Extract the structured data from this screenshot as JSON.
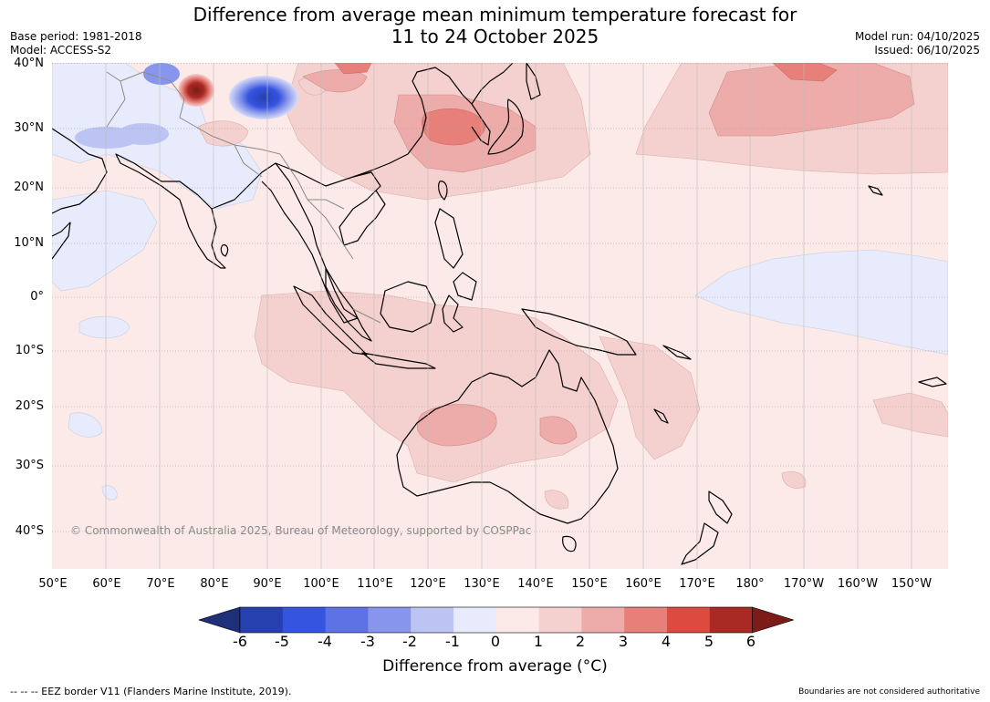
{
  "title": {
    "line1": "Difference from average mean minimum temperature forecast for",
    "line2": "11 to 24 October 2025"
  },
  "meta": {
    "base_period": "Base period: 1981-2018",
    "model": "Model: ACCESS-S2",
    "model_run": "Model run: 04/10/2025",
    "issued": "Issued: 06/10/2025"
  },
  "map": {
    "copyright": "© Commonwealth of Australia 2025, Bureau of Meteorology, supported by COSPPac",
    "lat_labels": [
      "40°N",
      "30°N",
      "20°N",
      "10°N",
      "0°",
      "10°S",
      "20°S",
      "30°S",
      "40°S"
    ],
    "lon_labels": [
      "50°E",
      "60°E",
      "70°E",
      "80°E",
      "90°E",
      "100°E",
      "110°E",
      "120°E",
      "130°E",
      "140°E",
      "150°E",
      "160°E",
      "170°E",
      "180°",
      "170°W",
      "160°W",
      "150°W"
    ],
    "colors": {
      "ocean_base": "#fbeae8",
      "land_outline": "#000000",
      "border": "#8a8a8a",
      "grid": "#999999"
    }
  },
  "colorbar": {
    "label": "Difference from average (°C)",
    "ticks": [
      "-6",
      "-5",
      "-4",
      "-3",
      "-2",
      "-1",
      "0",
      "1",
      "2",
      "3",
      "4",
      "5",
      "6"
    ],
    "colors": [
      "#1f2f7a",
      "#2640b0",
      "#3554e0",
      "#5f72e5",
      "#8796ec",
      "#bcc4f3",
      "#e8ebfb",
      "#fbeae8",
      "#f4d1cf",
      "#edaca9",
      "#e78079",
      "#dc4a40",
      "#a92a24",
      "#7c1c18"
    ]
  },
  "footer": {
    "eez": "--  --  -- EEZ border V11 (Flanders Marine Institute, 2019).",
    "boundaries": "Boundaries are not considered authoritative"
  }
}
